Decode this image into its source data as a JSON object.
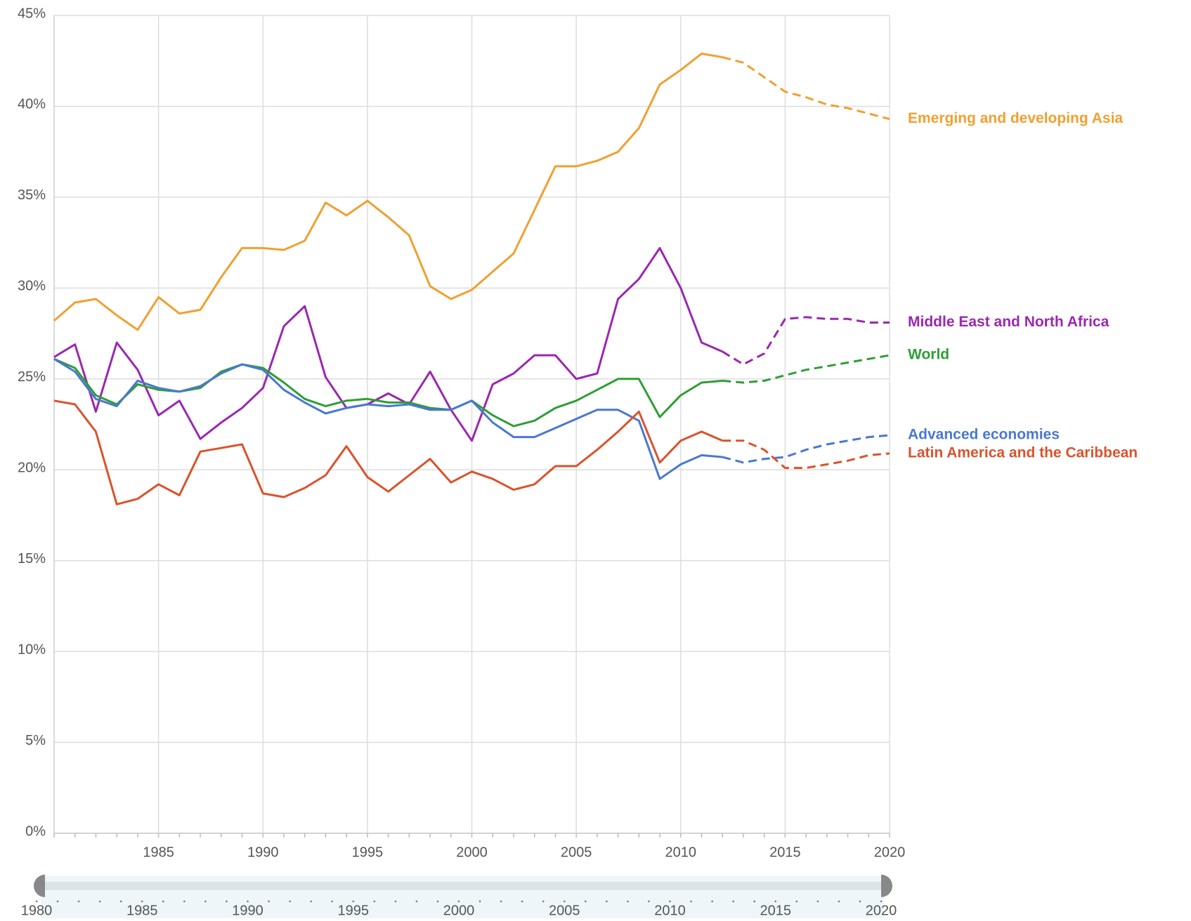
{
  "chart_data": {
    "type": "line",
    "x": [
      1980,
      1981,
      1982,
      1983,
      1984,
      1985,
      1986,
      1987,
      1988,
      1989,
      1990,
      1991,
      1992,
      1993,
      1994,
      1995,
      1996,
      1997,
      1998,
      1999,
      2000,
      2001,
      2002,
      2003,
      2004,
      2005,
      2006,
      2007,
      2008,
      2009,
      2010,
      2011,
      2012,
      2013,
      2014,
      2015,
      2016,
      2017,
      2018,
      2019,
      2020
    ],
    "xlim": [
      1980,
      2020
    ],
    "xticks": [
      1985,
      1990,
      1995,
      2000,
      2005,
      2010,
      2015,
      2020
    ],
    "ylim": [
      0,
      45
    ],
    "yticks": [
      {
        "value": 0,
        "label": "0%"
      },
      {
        "value": 5,
        "label": "5%"
      },
      {
        "value": 10,
        "label": "10%"
      },
      {
        "value": 15,
        "label": "15%"
      },
      {
        "value": 20,
        "label": "20%"
      },
      {
        "value": 25,
        "label": "25%"
      },
      {
        "value": 30,
        "label": "30%"
      },
      {
        "value": 35,
        "label": "35%"
      },
      {
        "value": 40,
        "label": "40%"
      },
      {
        "value": 45,
        "label": "45%"
      }
    ],
    "grid": true,
    "dashed_from_x": 2012,
    "series": [
      {
        "name": "Emerging and developing Asia",
        "color": "#f0a030",
        "values": [
          28.2,
          29.2,
          29.4,
          28.5,
          27.7,
          29.5,
          28.6,
          28.8,
          30.6,
          32.2,
          32.2,
          32.1,
          32.6,
          34.7,
          34.0,
          34.8,
          33.9,
          32.9,
          30.1,
          29.4,
          29.9,
          30.9,
          31.9,
          34.3,
          36.7,
          36.7,
          37.0,
          37.5,
          38.8,
          41.2,
          42.0,
          42.9,
          42.7,
          42.4,
          41.6,
          40.8,
          40.5,
          40.1,
          39.9,
          39.6,
          39.3
        ]
      },
      {
        "name": "Middle East and North Africa",
        "color": "#9b27b0",
        "values": [
          26.2,
          26.9,
          23.2,
          27.0,
          25.5,
          23.0,
          23.8,
          21.7,
          22.6,
          23.4,
          24.5,
          27.9,
          29.0,
          25.1,
          23.4,
          23.6,
          24.2,
          23.6,
          25.4,
          23.3,
          21.6,
          24.7,
          25.3,
          26.3,
          26.3,
          25.0,
          25.3,
          29.4,
          30.5,
          32.2,
          30.0,
          27.0,
          26.5,
          25.8,
          26.4,
          28.3,
          28.4,
          28.3,
          28.3,
          28.1,
          28.1
        ]
      },
      {
        "name": "World",
        "color": "#2e9e35",
        "values": [
          26.1,
          25.6,
          24.1,
          23.6,
          24.7,
          24.4,
          24.3,
          24.5,
          25.4,
          25.8,
          25.6,
          24.8,
          23.9,
          23.5,
          23.8,
          23.9,
          23.7,
          23.7,
          23.4,
          23.3,
          23.8,
          23.0,
          22.4,
          22.7,
          23.4,
          23.8,
          24.4,
          25.0,
          25.0,
          22.9,
          24.1,
          24.8,
          24.9,
          24.8,
          24.9,
          25.2,
          25.5,
          25.7,
          25.9,
          26.1,
          26.3
        ]
      },
      {
        "name": "Advanced economies",
        "color": "#4a78d0",
        "values": [
          26.1,
          25.4,
          23.9,
          23.5,
          24.9,
          24.5,
          24.3,
          24.6,
          25.3,
          25.8,
          25.5,
          24.4,
          23.7,
          23.1,
          23.4,
          23.6,
          23.5,
          23.6,
          23.3,
          23.3,
          23.8,
          22.6,
          21.8,
          21.8,
          22.3,
          22.8,
          23.3,
          23.3,
          22.7,
          19.5,
          20.3,
          20.8,
          20.7,
          20.4,
          20.6,
          20.7,
          21.1,
          21.4,
          21.6,
          21.8,
          21.9
        ]
      },
      {
        "name": "Latin America and the Caribbean",
        "color": "#d9532c",
        "values": [
          23.8,
          23.6,
          22.1,
          18.1,
          18.4,
          19.2,
          18.6,
          21.0,
          21.2,
          21.4,
          18.7,
          18.5,
          19.0,
          19.7,
          21.3,
          19.6,
          18.8,
          19.7,
          20.6,
          19.3,
          19.9,
          19.5,
          18.9,
          19.2,
          20.2,
          20.2,
          21.1,
          22.1,
          23.2,
          20.4,
          21.6,
          22.1,
          21.6,
          21.6,
          21.1,
          20.1,
          20.1,
          20.3,
          20.5,
          20.8,
          20.9
        ]
      }
    ],
    "slider": {
      "labels": [
        1980,
        1985,
        1990,
        1995,
        2000,
        2005,
        2010,
        2015,
        2020
      ]
    }
  }
}
